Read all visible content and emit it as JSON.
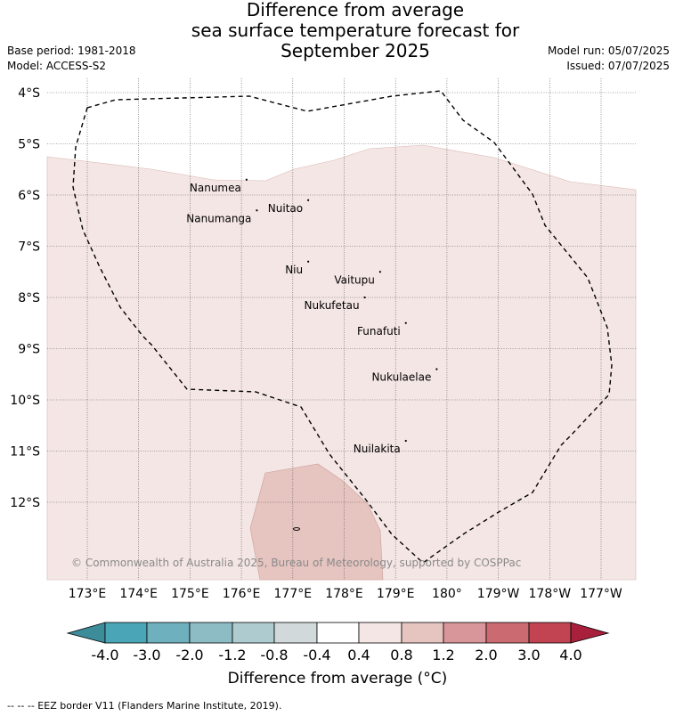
{
  "title": {
    "line1": "Difference from average",
    "line2": "sea surface temperature forecast for",
    "line3": "September 2025"
  },
  "meta_left": {
    "base_period": "Base period: 1981-2018",
    "model": "Model: ACCESS-S2"
  },
  "meta_right": {
    "model_run": "Model run: 05/07/2025",
    "issued": "Issued: 07/07/2025"
  },
  "map": {
    "lat_ticks": [
      "4°S",
      "5°S",
      "6°S",
      "7°S",
      "8°S",
      "9°S",
      "10°S",
      "11°S",
      "12°S"
    ],
    "lon_ticks": [
      "173°E",
      "174°E",
      "175°E",
      "176°E",
      "177°E",
      "178°E",
      "179°E",
      "180°",
      "179°W",
      "178°W",
      "177°W"
    ],
    "places": [
      {
        "name": "Nanumea",
        "lon": 176.1,
        "lat": -5.7
      },
      {
        "name": "Nuitao",
        "lon": 177.3,
        "lat": -6.1
      },
      {
        "name": "Nanumanga",
        "lon": 176.3,
        "lat": -6.3
      },
      {
        "name": "Niu",
        "lon": 177.3,
        "lat": -7.3
      },
      {
        "name": "Vaitupu",
        "lon": 178.7,
        "lat": -7.5
      },
      {
        "name": "Nukufetau",
        "lon": 178.4,
        "lat": -8.0
      },
      {
        "name": "Funafuti",
        "lon": 179.2,
        "lat": -8.5
      },
      {
        "name": "Nukulaelae",
        "lon": 179.8,
        "lat": -9.4
      },
      {
        "name": "Nuilakita",
        "lon": 179.2,
        "lat": -10.8
      }
    ],
    "copyright": "© Commonwealth of Australia 2025, Bureau of Meteorology, supported by COSPPac",
    "fill_colors": {
      "band_0.4_0.8": "#f4e6e4",
      "band_0.8_1.2": "#e6c4c0"
    }
  },
  "colorbar": {
    "labels": [
      "-4.0",
      "-3.0",
      "-2.0",
      "-1.2",
      "-0.8",
      "-0.4",
      "0.4",
      "0.8",
      "1.2",
      "2.0",
      "3.0",
      "4.0"
    ],
    "colors": [
      "#3d8c99",
      "#4aa6b6",
      "#6eb0bd",
      "#8ebcc5",
      "#aecbd0",
      "#d1d9da",
      "#ffffff",
      "#f4e6e4",
      "#e6c4c0",
      "#d8959a",
      "#cc6a72",
      "#c24452",
      "#a8203c"
    ],
    "title": "Difference from average (°C)"
  },
  "eez_note": "--  --  -- EEZ border V11 (Flanders Marine Institute, 2019)."
}
